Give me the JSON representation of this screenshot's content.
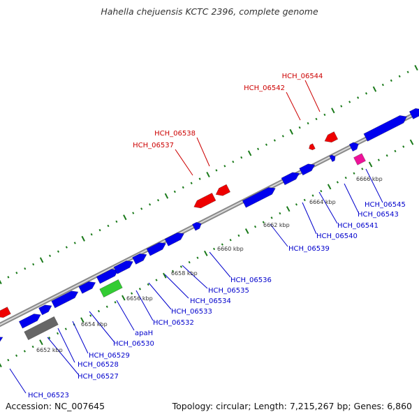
{
  "title": "Hahella chejuensis KCTC 2396, complete genome",
  "footer": {
    "accession": "Accession: NC_007645",
    "summary": "Topology: circular; Length: 7,215,267 bp; Genes: 6,860"
  },
  "colors": {
    "backbone": "#9a9a9a",
    "forward_gene": "#0000ee",
    "reverse_gene": "#ee0000",
    "rna_gene": "#33cc33",
    "pseudo_gene": "#666666",
    "special_gene": "#ee1199",
    "tick": "#1a7a1a",
    "label_forward": "#0000cc",
    "label_reverse": "#cc0000"
  },
  "scale_labels": [
    "6652 kbp",
    "6654 kbp",
    "6656 kbp",
    "6658 kbp",
    "6660 kbp",
    "6662 kbp",
    "6664 kbp",
    "6666 kbp"
  ],
  "gene_labels": {
    "outer": [
      "HCH_06537",
      "HCH_06538",
      "HCH_06542",
      "HCH_06544"
    ],
    "inner": [
      "HCH_06523",
      "HCH_06527",
      "HCH_06528",
      "HCH_06529",
      "HCH_06530",
      "apaH",
      "HCH_06532",
      "HCH_06533",
      "HCH_06534",
      "HCH_06535",
      "HCH_06536",
      "HCH_06539",
      "HCH_06540",
      "HCH_06541",
      "HCH_06543",
      "HCH_06545"
    ]
  }
}
